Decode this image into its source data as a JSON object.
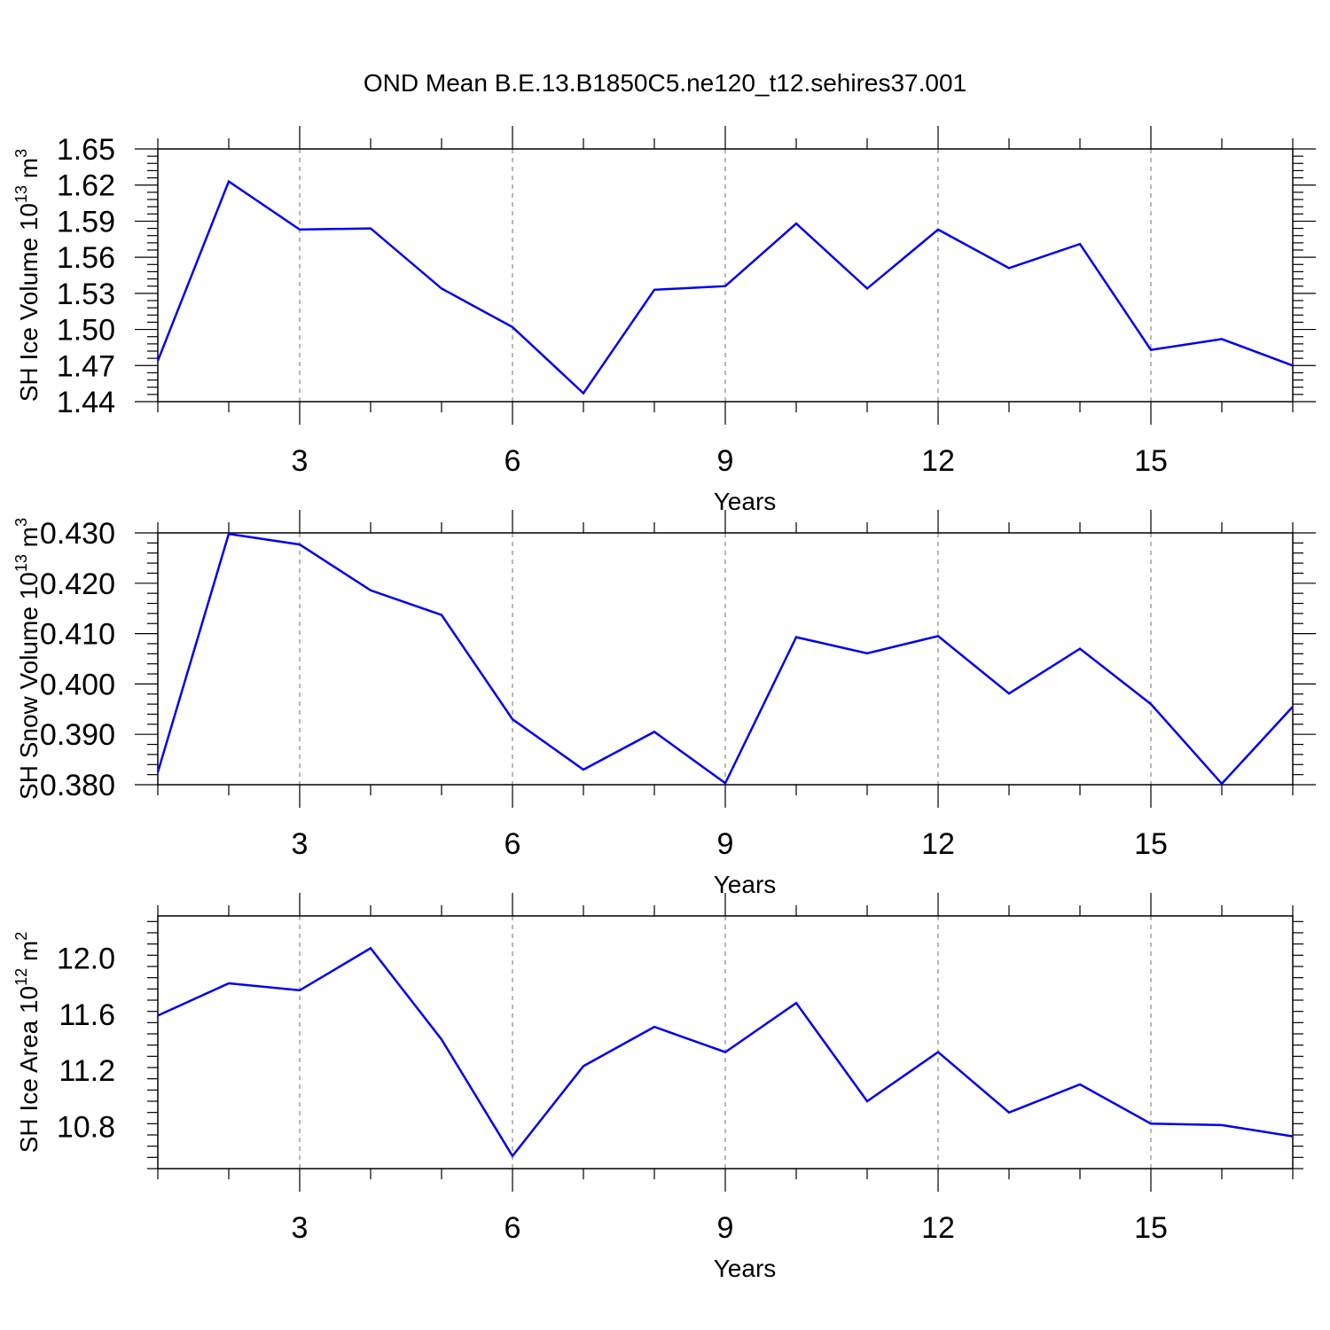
{
  "title": "OND Mean B.E.13.B1850C5.ne120_t12.sehires37.001",
  "colors": {
    "series": "#0000ee",
    "axis": "#000000",
    "grid": "#888888"
  },
  "chart_data": [
    {
      "type": "line",
      "title": "OND Mean B.E.13.B1850C5.ne120_t12.sehires37.001",
      "ylabel": "SH Ice Volume 10",
      "ylabel_exp": "13",
      "ylabel_unit": " m",
      "ylabel_unit_exp": "3",
      "xlabel": "Years",
      "xlim": [
        1,
        17
      ],
      "ylim": [
        1.44,
        1.65
      ],
      "xticks": [
        3,
        6,
        9,
        12,
        15
      ],
      "yticks": [
        "1.65",
        "1.62",
        "1.59",
        "1.56",
        "1.53",
        "1.50",
        "1.47",
        "1.44"
      ],
      "grid": "x-dashed",
      "x": [
        1,
        2,
        3,
        4,
        5,
        6,
        7,
        8,
        9,
        10,
        11,
        12,
        13,
        14,
        15,
        16,
        17
      ],
      "series": [
        {
          "values": [
            1.474,
            1.623,
            1.583,
            1.584,
            1.534,
            1.502,
            1.447,
            1.533,
            1.536,
            1.588,
            1.534,
            1.583,
            1.551,
            1.571,
            1.483,
            1.492,
            1.47
          ]
        }
      ]
    },
    {
      "type": "line",
      "ylabel": "SH Snow Volume 10",
      "ylabel_exp": "13",
      "ylabel_unit": " m",
      "ylabel_unit_exp": "3",
      "xlabel": "Years",
      "xlim": [
        1,
        17
      ],
      "ylim": [
        0.38,
        0.43
      ],
      "xticks": [
        3,
        6,
        9,
        12,
        15
      ],
      "yticks": [
        "0.430",
        "0.420",
        "0.410",
        "0.400",
        "0.390",
        "0.380"
      ],
      "grid": "x-dashed",
      "x": [
        1,
        2,
        3,
        4,
        5,
        6,
        7,
        8,
        9,
        10,
        11,
        12,
        13,
        14,
        15,
        16,
        17
      ],
      "series": [
        {
          "values": [
            0.3825,
            0.4298,
            0.4277,
            0.4186,
            0.4137,
            0.393,
            0.383,
            0.3905,
            0.3803,
            0.4093,
            0.4061,
            0.4095,
            0.3981,
            0.407,
            0.396,
            0.3802,
            0.3955
          ]
        }
      ]
    },
    {
      "type": "line",
      "ylabel": "SH Ice Area 10",
      "ylabel_exp": "12",
      "ylabel_unit": " m",
      "ylabel_unit_exp": "2",
      "xlabel": "Years",
      "xlim": [
        1,
        17
      ],
      "ylim": [
        10.5,
        12.3
      ],
      "xticks": [
        3,
        6,
        9,
        12,
        15
      ],
      "yticks": [
        "12.0",
        "11.6",
        "11.2",
        "10.8"
      ],
      "grid": "x-dashed",
      "x": [
        1,
        2,
        3,
        4,
        5,
        6,
        7,
        8,
        9,
        10,
        11,
        12,
        13,
        14,
        15,
        16,
        17
      ],
      "series": [
        {
          "values": [
            11.59,
            11.82,
            11.77,
            12.07,
            11.42,
            10.59,
            11.23,
            11.51,
            11.33,
            11.68,
            10.98,
            11.33,
            10.9,
            11.1,
            10.82,
            10.81,
            10.73
          ]
        }
      ]
    }
  ]
}
